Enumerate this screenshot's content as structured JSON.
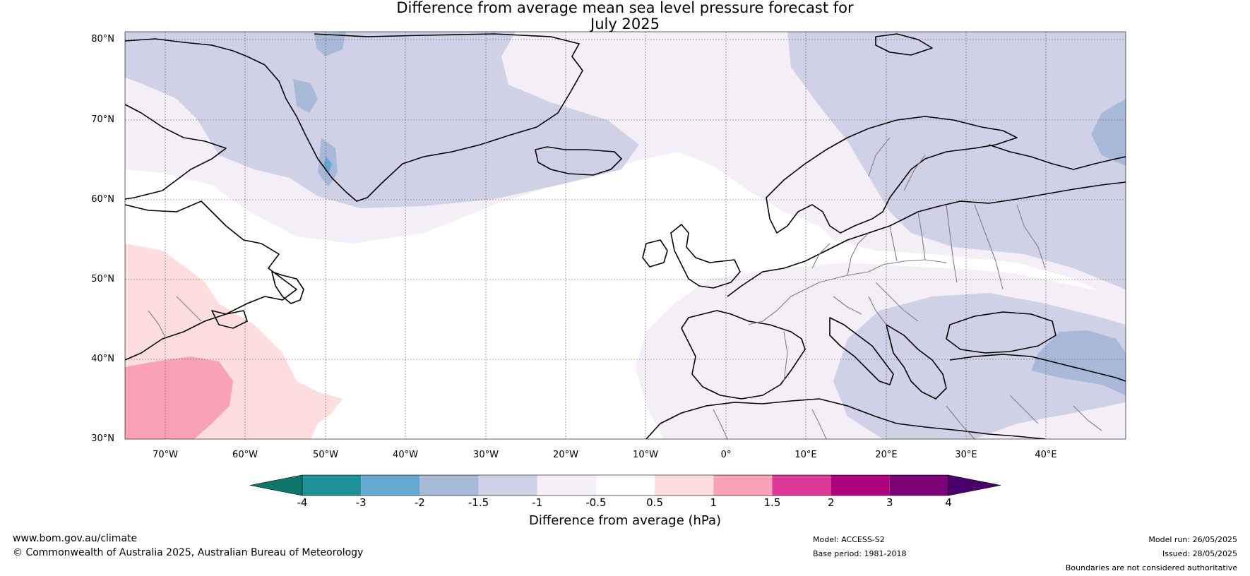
{
  "title": {
    "line1": "Difference from average mean sea level pressure forecast for",
    "line2": "July 2025"
  },
  "map": {
    "lat_labels": [
      "80°N",
      "70°N",
      "60°N",
      "50°N",
      "40°N",
      "30°N"
    ],
    "lon_labels": [
      "70°W",
      "60°W",
      "50°W",
      "40°W",
      "30°W",
      "20°W",
      "10°W",
      "0°",
      "10°E",
      "20°E",
      "30°E",
      "40°E"
    ],
    "lon_range": [
      -75,
      50
    ],
    "lat_range": [
      30,
      81
    ],
    "land_color": "#000000",
    "border_color": "#808080"
  },
  "colorbar": {
    "ticks": [
      "-4",
      "-3",
      "-2",
      "-1.5",
      "-1",
      "-0.5",
      "0.5",
      "1",
      "1.5",
      "2",
      "3",
      "4"
    ],
    "colors": [
      "#0f766c",
      "#1e9196",
      "#66a8d2",
      "#a8b9d8",
      "#d0d1e6",
      "#f4eef7",
      "#ffffff",
      "#fdddde",
      "#f9a2b6",
      "#dd3798",
      "#ad017e",
      "#7b0177",
      "#4a006a"
    ],
    "label": "Difference from average (hPa)"
  },
  "footer": {
    "website": "www.bom.gov.au/climate",
    "copyright": "© Commonwealth of Australia 2025, Australian Bureau of Meteorology",
    "model": "Model: ACCESS-S2",
    "base_period": "Base period: 1981-2018",
    "model_run": "Model run: 26/05/2025",
    "issued": "Issued: 28/05/2025",
    "disclaimer": "Boundaries are not considered authoritative"
  }
}
